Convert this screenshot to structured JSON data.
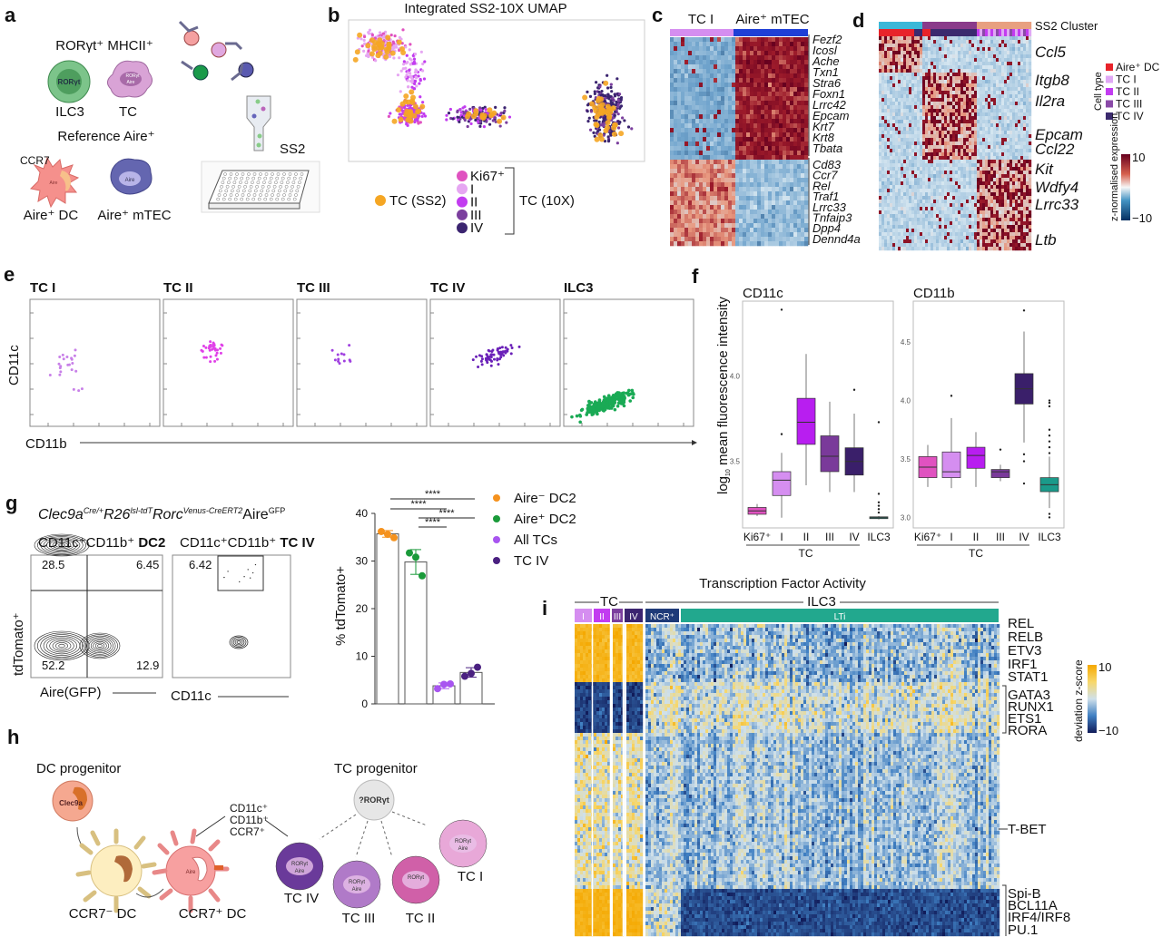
{
  "panel_labels": {
    "a": "a",
    "b": "b",
    "c": "c",
    "d": "d",
    "e": "e",
    "f": "f",
    "g": "g",
    "h": "h",
    "i": "i"
  },
  "panel_a": {
    "heading": "RORγt⁺ MHCII⁺",
    "ilc3_nucleus": "RORγt",
    "ilc3": "ILC3",
    "tc_nucleus_1": "RORγt",
    "tc_nucleus_2": "Aire",
    "tc": "TC",
    "reference": "Reference Aire⁺",
    "ccr7": "CCR7",
    "dc_nucleus": "Aire",
    "dc": "Aire⁺ DC",
    "mtec_nucleus": "Aire",
    "mtec": "Aire⁺ mTEC",
    "ss2": "SS2"
  },
  "panel_b": {
    "title": "Integrated SS2-10X UMAP",
    "legend_ss2": "TC (SS2)",
    "legend_10x": "TC (10X)",
    "subsets": [
      {
        "label": "Ki67⁺",
        "color": "#e052c0"
      },
      {
        "label": "I",
        "color": "#e6a6f2"
      },
      {
        "label": "II",
        "color": "#c23cf0"
      },
      {
        "label": "III",
        "color": "#7b3f9e"
      },
      {
        "label": "IV",
        "color": "#3b2470"
      }
    ],
    "ss2_color": "#f5a623"
  },
  "panel_c": {
    "col_left": "TC I",
    "col_right": "Aire⁺ mTEC",
    "genes": [
      "Fezf2",
      "Icosl",
      "Ache",
      "Txn1",
      "Stra6",
      "Foxn1",
      "Lrrc42",
      "Epcam",
      "Krt7",
      "Krt8",
      "Tbata",
      "Cd83",
      "Ccr7",
      "Rel",
      "Traf1",
      "Lrrc33",
      "Tnfaip3",
      "Dpp4",
      "Dennd4a"
    ],
    "color_left": "#d58ef0",
    "color_right": "#1f3fd6"
  },
  "panel_d": {
    "cluster_label": "SS2 Cluster",
    "genes": [
      "Ccl5",
      "Itgb8",
      "Il2ra",
      "Epcam",
      "Ccl22",
      "Kit",
      "Wdfy4",
      "Lrrc33",
      "Ltb"
    ],
    "legend_title": "Cell type",
    "legend": [
      {
        "label": "Aire⁺ DC",
        "color": "#e8232a"
      },
      {
        "label": "TC I",
        "color": "#e0a8f5"
      },
      {
        "label": "TC II",
        "color": "#c23cf0"
      },
      {
        "label": "TC III",
        "color": "#8a4aa8"
      },
      {
        "label": "TC IV",
        "color": "#3b2a6e"
      }
    ],
    "colorbar_title": "z-normalised expression",
    "colorbar_max": "10",
    "colorbar_min": "−10",
    "cluster_colors": [
      "#3bb8d8",
      "#8a3a8a",
      "#e8a080"
    ]
  },
  "panel_e": {
    "plots": [
      {
        "title": "TC I",
        "color": "#c880e8"
      },
      {
        "title": "TC II",
        "color": "#e040e8"
      },
      {
        "title": "TC III",
        "color": "#a040e0"
      },
      {
        "title": "TC IV",
        "color": "#6a20b8"
      },
      {
        "title": "ILC3",
        "color": "#1aaa55"
      }
    ],
    "ylabel": "CD11c",
    "xlabel": "CD11b"
  },
  "panel_g": {
    "genotype": "Clec9aCre/+R26lsl-tdTRorcVenus-CreERT2AireGFP",
    "genotype_parts": [
      "Clec9a",
      "Cre/+",
      "R26",
      "lsl-tdT",
      "Rorc",
      "Venus-CreERT2",
      "Aire",
      "GFP"
    ],
    "plot1_title": "CD11c⁺CD11b⁺ ",
    "plot1_title_bold": "DC2",
    "plot2_title": "CD11c⁺CD11b⁺ ",
    "plot2_title_bold": "TC IV",
    "q_ul": "28.5",
    "q_ur": "6.45",
    "q_ll": "52.2",
    "q_lr": "12.9",
    "gate": "6.42",
    "ylabel": "tdTomato⁺",
    "xlabel1": "Aire(GFP)",
    "xlabel2": "CD11c",
    "significance": "****"
  },
  "panel_h": {
    "dc_progenitor": "DC progenitor",
    "clec9a": "Clec9a",
    "ccr7_neg": "CCR7⁻ DC",
    "ccr7_pos": "CCR7⁺ DC",
    "aire": "Aire",
    "markers": [
      "CD11c⁺",
      "CD11b⁺",
      "CCR7⁺"
    ],
    "tc_progenitor": "TC progenitor",
    "tc_prog_nucleus": "?RORγt",
    "rorgt": "RORγt",
    "tc_iv": "TC IV",
    "tc_iii": "TC III",
    "tc_ii": "TC II",
    "tc_i": "TC I"
  },
  "panel_i": {
    "title": "Transcription Factor Activity",
    "group_tc": "TC",
    "group_ilc3": "ILC3",
    "columns": [
      {
        "label": "I",
        "color": "#d58ef0"
      },
      {
        "label": "II",
        "color": "#c23cf0"
      },
      {
        "label": "III",
        "color": "#7b3f9e"
      },
      {
        "label": "IV",
        "color": "#3b2470"
      },
      {
        "label": "NCR⁺",
        "color": "#1e3a78"
      },
      {
        "label": "LTi",
        "color": "#22a88e"
      }
    ],
    "tfs": [
      "REL",
      "RELB",
      "ETV3",
      "IRF1",
      "STAT1",
      "GATA3",
      "RUNX1",
      "ETS1",
      "RORA",
      "T-BET",
      "Spi-B",
      "BCL11A",
      "IRF4/IRF8",
      "PU.1"
    ],
    "colorbar_title": "deviation z-score",
    "colorbar_max": "10",
    "colorbar_min": "−10"
  },
  "chart_data": [
    {
      "type": "box",
      "title": "CD11c",
      "ylabel": "log10 mean fluorescence intensity",
      "xgroup_label": "TC",
      "categories": [
        "Ki67⁺",
        "I",
        "II",
        "III",
        "IV",
        "ILC3"
      ],
      "colors": [
        "#e052c0",
        "#d58ef0",
        "#b81ef0",
        "#7a3a9a",
        "#3a1f6a",
        "#1a9a8a"
      ],
      "yticks": [
        "3.5",
        "4.0"
      ],
      "ylim": [
        3.11,
        4.44
      ],
      "boxes": [
        {
          "whislo": 3.18,
          "q1": 3.19,
          "med": 3.21,
          "q3": 3.23,
          "whishi": 3.25,
          "fliers": []
        },
        {
          "whislo": 3.17,
          "q1": 3.3,
          "med": 3.39,
          "q3": 3.44,
          "whishi": 3.55,
          "fliers": [
            3.66,
            4.39
          ]
        },
        {
          "whislo": 3.36,
          "q1": 3.6,
          "med": 3.73,
          "q3": 3.87,
          "whishi": 4.13,
          "fliers": []
        },
        {
          "whislo": 3.32,
          "q1": 3.44,
          "med": 3.53,
          "q3": 3.65,
          "whishi": 3.85,
          "fliers": []
        },
        {
          "whislo": 3.32,
          "q1": 3.42,
          "med": 3.5,
          "q3": 3.58,
          "whishi": 3.78,
          "fliers": [
            3.92
          ]
        },
        {
          "whislo": 3.16,
          "q1": 3.165,
          "med": 3.17,
          "q3": 3.175,
          "whishi": 3.18,
          "fliers": [
            3.2,
            3.22,
            3.24,
            3.26,
            3.31,
            3.73
          ]
        }
      ]
    },
    {
      "type": "box",
      "title": "CD11b",
      "xgroup_label": "TC",
      "categories": [
        "Ki67⁺",
        "I",
        "II",
        "III",
        "IV",
        "ILC3"
      ],
      "colors": [
        "#e052c0",
        "#d58ef0",
        "#b81ef0",
        "#7a3a9a",
        "#3a1f6a",
        "#1a9a8a"
      ],
      "yticks": [
        "3.0",
        "3.5",
        "4.0",
        "4.5"
      ],
      "ylim": [
        2.91,
        4.85
      ],
      "boxes": [
        {
          "whislo": 3.26,
          "q1": 3.34,
          "med": 3.43,
          "q3": 3.52,
          "whishi": 3.62,
          "fliers": []
        },
        {
          "whislo": 3.25,
          "q1": 3.34,
          "med": 3.39,
          "q3": 3.56,
          "whishi": 3.85,
          "fliers": [
            4.04
          ]
        },
        {
          "whislo": 3.26,
          "q1": 3.42,
          "med": 3.53,
          "q3": 3.6,
          "whishi": 3.73,
          "fliers": []
        },
        {
          "whislo": 3.31,
          "q1": 3.34,
          "med": 3.39,
          "q3": 3.41,
          "whishi": 3.45,
          "fliers": [
            3.58
          ]
        },
        {
          "whislo": 3.64,
          "q1": 3.97,
          "med": 4.1,
          "q3": 4.23,
          "whishi": 4.59,
          "fliers": [
            3.29,
            3.48,
            3.54,
            4.77
          ]
        },
        {
          "whislo": 3.08,
          "q1": 3.22,
          "med": 3.28,
          "q3": 3.34,
          "whishi": 3.52,
          "fliers": [
            3.0,
            3.03,
            3.55,
            3.6,
            3.65,
            3.7,
            3.75,
            3.95,
            3.98,
            4.0
          ]
        }
      ]
    },
    {
      "type": "bar",
      "ylabel": "% tdTomato+",
      "ylim": [
        0,
        40
      ],
      "yticks": [
        "0",
        "10",
        "20",
        "30",
        "40"
      ],
      "legend_position": "right",
      "series": [
        {
          "name": "Aire⁻ DC2",
          "color": "#f5921e",
          "mean": 35.7,
          "sd": 0.7,
          "points": [
            36.2,
            35.6,
            34.9
          ]
        },
        {
          "name": "Aire⁺ DC2",
          "color": "#1a9a3a",
          "mean": 29.8,
          "sd": 2.6,
          "points": [
            31.7,
            30.8,
            26.9
          ]
        },
        {
          "name": "All TCs",
          "color": "#a855f0",
          "mean": 3.8,
          "sd": 0.6,
          "points": [
            3.2,
            4.1,
            4.2
          ]
        },
        {
          "name": "TC IV",
          "color": "#4a2080",
          "mean": 6.6,
          "sd": 1.0,
          "points": [
            5.8,
            6.4,
            7.7
          ]
        }
      ],
      "comparisons": [
        {
          "from": "Aire⁻ DC2",
          "to": "TC IV",
          "label": "****"
        },
        {
          "from": "Aire⁻ DC2",
          "to": "All TCs",
          "label": "****"
        },
        {
          "from": "Aire⁺ DC2",
          "to": "TC IV",
          "label": "****"
        },
        {
          "from": "Aire⁺ DC2",
          "to": "All TCs",
          "label": "****"
        }
      ]
    }
  ]
}
